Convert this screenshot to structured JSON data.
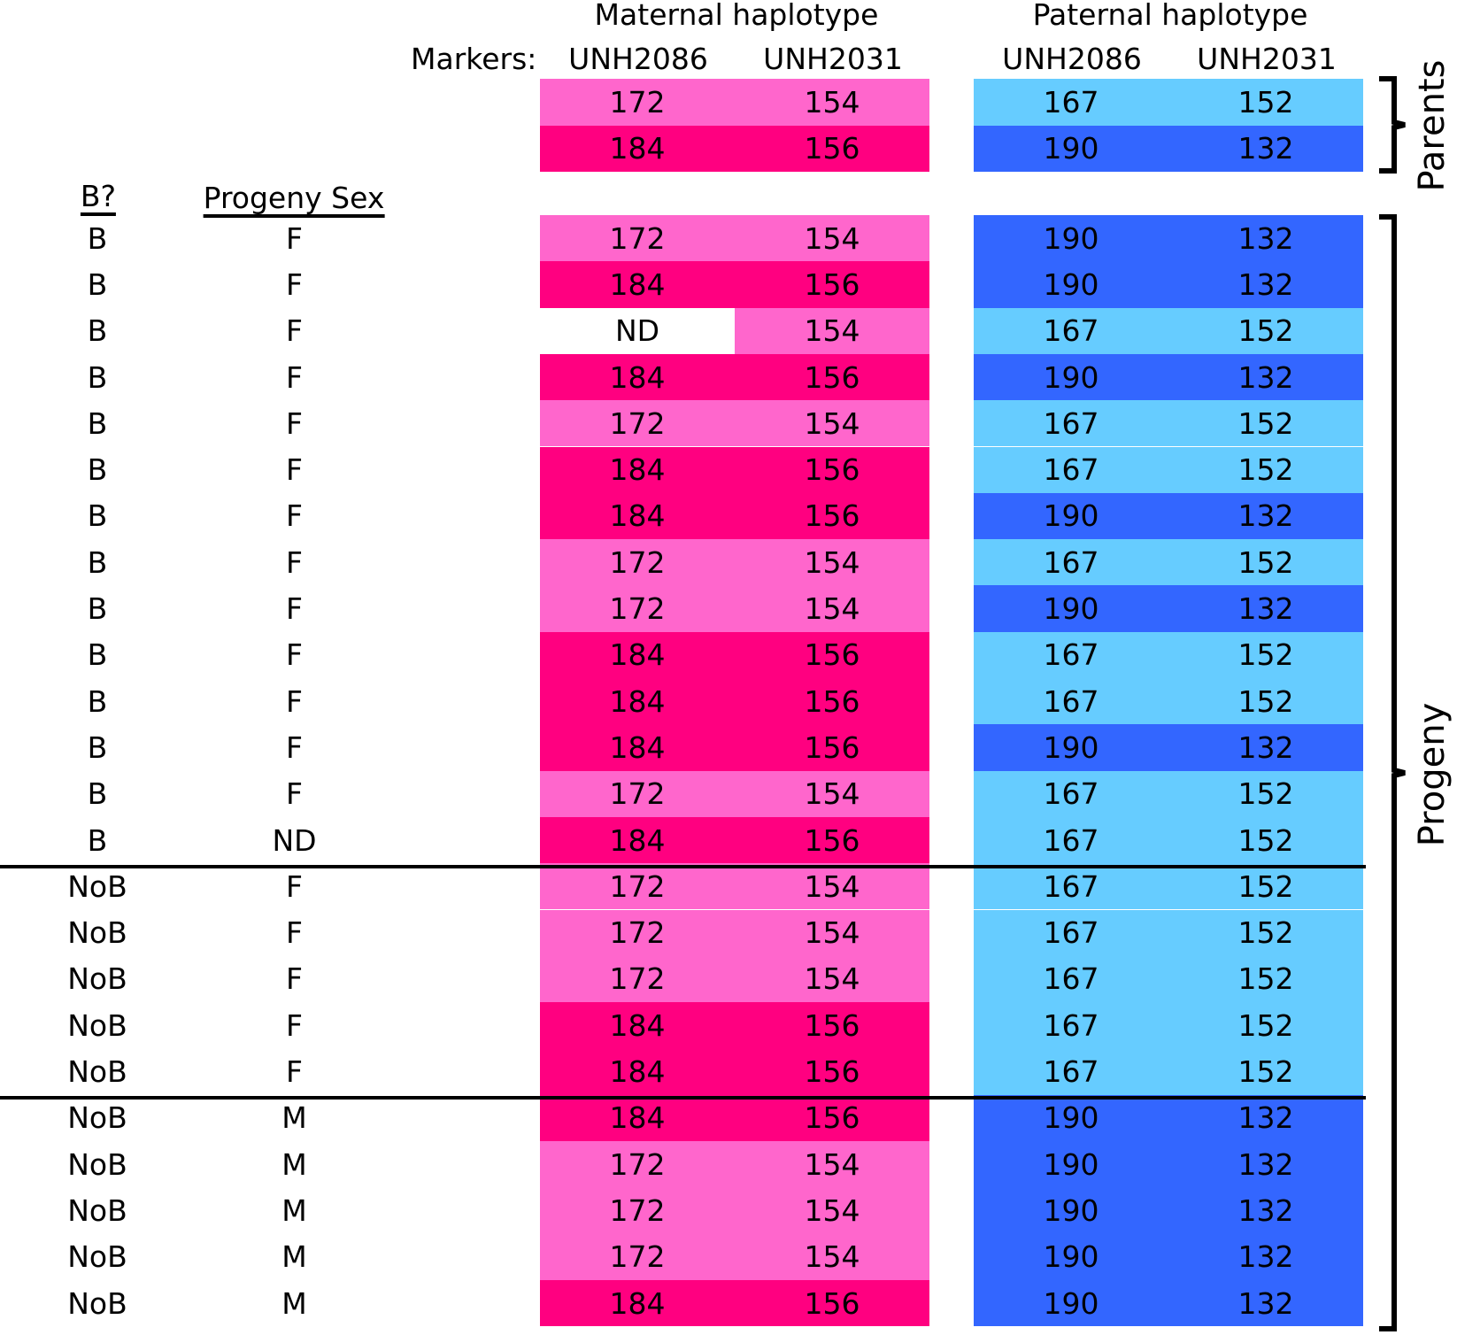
{
  "headers": {
    "maternal": "Maternal haplotype",
    "paternal": "Paternal haplotype",
    "markers_label": "Markers:",
    "markers": [
      "UNH2086",
      "UNH2031",
      "UNH2086",
      "UNH2031"
    ],
    "b_col": "B?",
    "sex_col": "Progeny Sex"
  },
  "labels": {
    "parents": "Parents",
    "progeny": "Progeny"
  },
  "colors": {
    "maternal_172": "#ff66cc",
    "maternal_184": "#ff0080",
    "paternal_167": "#66ccff",
    "paternal_190": "#3366ff",
    "nd": "#ffffff"
  },
  "parents": [
    {
      "m1": "172",
      "m2": "154",
      "p1": "167",
      "p2": "152"
    },
    {
      "m1": "184",
      "m2": "156",
      "p1": "190",
      "p2": "132"
    }
  ],
  "progeny": [
    {
      "b": "B",
      "sex": "F",
      "m1": "172",
      "m2": "154",
      "p1": "190",
      "p2": "132"
    },
    {
      "b": "B",
      "sex": "F",
      "m1": "184",
      "m2": "156",
      "p1": "190",
      "p2": "132"
    },
    {
      "b": "B",
      "sex": "F",
      "m1": "ND",
      "m2": "154",
      "p1": "167",
      "p2": "152"
    },
    {
      "b": "B",
      "sex": "F",
      "m1": "184",
      "m2": "156",
      "p1": "190",
      "p2": "132"
    },
    {
      "b": "B",
      "sex": "F",
      "m1": "172",
      "m2": "154",
      "p1": "167",
      "p2": "152"
    },
    {
      "b": "B",
      "sex": "F",
      "m1": "184",
      "m2": "156",
      "p1": "167",
      "p2": "152"
    },
    {
      "b": "B",
      "sex": "F",
      "m1": "184",
      "m2": "156",
      "p1": "190",
      "p2": "132"
    },
    {
      "b": "B",
      "sex": "F",
      "m1": "172",
      "m2": "154",
      "p1": "167",
      "p2": "152"
    },
    {
      "b": "B",
      "sex": "F",
      "m1": "172",
      "m2": "154",
      "p1": "190",
      "p2": "132"
    },
    {
      "b": "B",
      "sex": "F",
      "m1": "184",
      "m2": "156",
      "p1": "167",
      "p2": "152"
    },
    {
      "b": "B",
      "sex": "F",
      "m1": "184",
      "m2": "156",
      "p1": "167",
      "p2": "152"
    },
    {
      "b": "B",
      "sex": "F",
      "m1": "184",
      "m2": "156",
      "p1": "190",
      "p2": "132"
    },
    {
      "b": "B",
      "sex": "F",
      "m1": "172",
      "m2": "154",
      "p1": "167",
      "p2": "152"
    },
    {
      "b": "B",
      "sex": "ND",
      "m1": "184",
      "m2": "156",
      "p1": "167",
      "p2": "152"
    },
    {
      "b": "NoB",
      "sex": "F",
      "m1": "172",
      "m2": "154",
      "p1": "167",
      "p2": "152"
    },
    {
      "b": "NoB",
      "sex": "F",
      "m1": "172",
      "m2": "154",
      "p1": "167",
      "p2": "152"
    },
    {
      "b": "NoB",
      "sex": "F",
      "m1": "172",
      "m2": "154",
      "p1": "167",
      "p2": "152"
    },
    {
      "b": "NoB",
      "sex": "F",
      "m1": "184",
      "m2": "156",
      "p1": "167",
      "p2": "152"
    },
    {
      "b": "NoB",
      "sex": "F",
      "m1": "184",
      "m2": "156",
      "p1": "167",
      "p2": "152"
    },
    {
      "b": "NoB",
      "sex": "M",
      "m1": "184",
      "m2": "156",
      "p1": "190",
      "p2": "132"
    },
    {
      "b": "NoB",
      "sex": "M",
      "m1": "172",
      "m2": "154",
      "p1": "190",
      "p2": "132"
    },
    {
      "b": "NoB",
      "sex": "M",
      "m1": "172",
      "m2": "154",
      "p1": "190",
      "p2": "132"
    },
    {
      "b": "NoB",
      "sex": "M",
      "m1": "172",
      "m2": "154",
      "p1": "190",
      "p2": "132"
    },
    {
      "b": "NoB",
      "sex": "M",
      "m1": "184",
      "m2": "156",
      "p1": "190",
      "p2": "132"
    }
  ]
}
